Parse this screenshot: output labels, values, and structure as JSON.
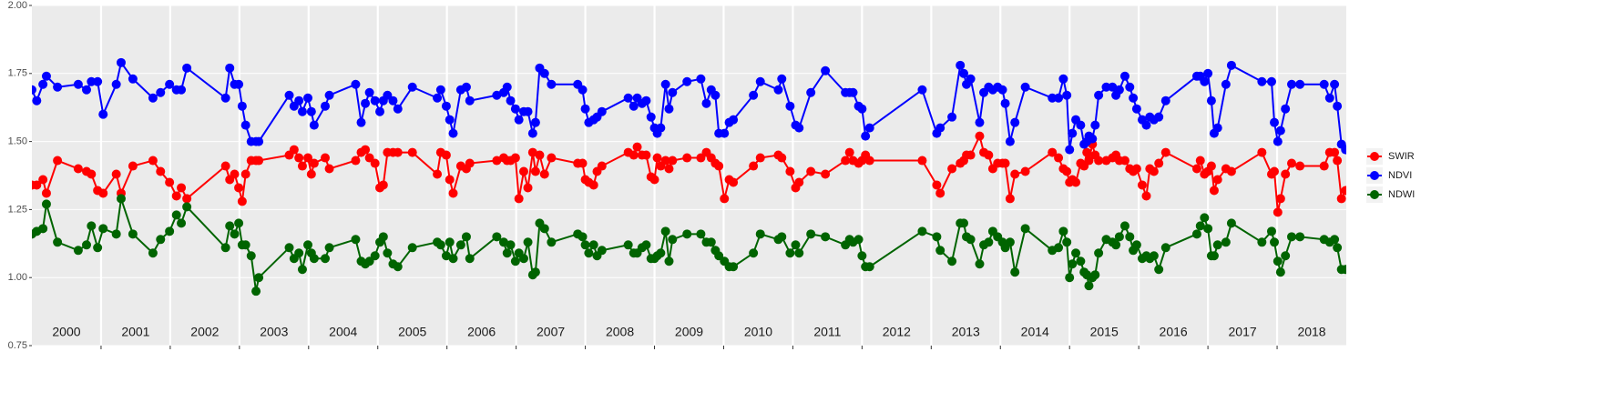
{
  "chart_data": {
    "type": "line",
    "x": [
      2000.0,
      2000.07,
      2000.16,
      2000.21,
      2000.37,
      2000.67,
      2000.79,
      2000.86,
      2000.95,
      2001.03,
      2001.22,
      2001.29,
      2001.46,
      2001.75,
      2001.86,
      2001.99,
      2002.09,
      2002.16,
      2002.24,
      2002.8,
      2002.86,
      2002.93,
      2002.99,
      2003.04,
      2003.09,
      2003.17,
      2003.24,
      2003.28,
      2003.72,
      2003.79,
      2003.86,
      2003.91,
      2003.99,
      2004.04,
      2004.08,
      2004.24,
      2004.3,
      2004.68,
      2004.76,
      2004.82,
      2004.88,
      2004.96,
      2005.03,
      2005.08,
      2005.14,
      2005.22,
      2005.29,
      2005.5,
      2005.86,
      2005.91,
      2005.99,
      2006.04,
      2006.09,
      2006.2,
      2006.28,
      2006.33,
      2006.72,
      2006.82,
      2006.87,
      2006.92,
      2006.99,
      2007.04,
      2007.11,
      2007.17,
      2007.24,
      2007.28,
      2007.34,
      2007.41,
      2007.51,
      2007.89,
      2007.96,
      2008.0,
      2008.05,
      2008.12,
      2008.17,
      2008.24,
      2008.62,
      2008.7,
      2008.75,
      2008.82,
      2008.88,
      2008.95,
      2009.0,
      2009.04,
      2009.09,
      2009.16,
      2009.21,
      2009.26,
      2009.47,
      2009.67,
      2009.75,
      2009.82,
      2009.88,
      2009.93,
      2010.01,
      2010.08,
      2010.14,
      2010.43,
      2010.53,
      2010.79,
      2010.84,
      2010.96,
      2011.04,
      2011.09,
      2011.26,
      2011.47,
      2011.76,
      2011.82,
      2011.87,
      2011.95,
      2012.0,
      2012.05,
      2012.11,
      2012.87,
      2013.08,
      2013.13,
      2013.3,
      2013.42,
      2013.47,
      2013.51,
      2013.57,
      2013.7,
      2013.76,
      2013.83,
      2013.89,
      2013.96,
      2014.03,
      2014.07,
      2014.14,
      2014.21,
      2014.36,
      2014.75,
      2014.84,
      2014.91,
      2014.96,
      2015.0,
      2015.04,
      2015.09,
      2015.16,
      2015.21,
      2015.25,
      2015.28,
      2015.33,
      2015.37,
      2015.42,
      2015.53,
      2015.62,
      2015.67,
      2015.72,
      2015.8,
      2015.87,
      2015.92,
      2015.97,
      2016.05,
      2016.11,
      2016.16,
      2016.22,
      2016.29,
      2016.39,
      2016.84,
      2016.89,
      2016.95,
      2017.0,
      2017.05,
      2017.09,
      2017.14,
      2017.26,
      2017.34,
      2017.78,
      2017.92,
      2017.96,
      2018.01,
      2018.05,
      2018.12,
      2018.21,
      2018.33,
      2018.68,
      2018.76,
      2018.83,
      2018.87,
      2018.93,
      2018.99
    ],
    "series": [
      {
        "name": "SWIR",
        "color": "#ff0000",
        "values": [
          1.34,
          1.34,
          1.36,
          1.31,
          1.43,
          1.4,
          1.39,
          1.38,
          1.32,
          1.31,
          1.38,
          1.31,
          1.41,
          1.43,
          1.39,
          1.35,
          1.3,
          1.33,
          1.29,
          1.41,
          1.36,
          1.38,
          1.33,
          1.28,
          1.38,
          1.43,
          1.43,
          1.43,
          1.45,
          1.47,
          1.44,
          1.41,
          1.44,
          1.38,
          1.42,
          1.44,
          1.4,
          1.43,
          1.46,
          1.47,
          1.44,
          1.42,
          1.33,
          1.34,
          1.46,
          1.46,
          1.46,
          1.46,
          1.38,
          1.46,
          1.45,
          1.36,
          1.31,
          1.41,
          1.4,
          1.42,
          1.43,
          1.44,
          1.43,
          1.43,
          1.44,
          1.29,
          1.39,
          1.33,
          1.46,
          1.39,
          1.45,
          1.38,
          1.44,
          1.42,
          1.42,
          1.36,
          1.35,
          1.34,
          1.39,
          1.41,
          1.46,
          1.45,
          1.48,
          1.45,
          1.45,
          1.37,
          1.36,
          1.44,
          1.41,
          1.43,
          1.4,
          1.43,
          1.44,
          1.44,
          1.46,
          1.44,
          1.42,
          1.41,
          1.29,
          1.36,
          1.35,
          1.41,
          1.44,
          1.45,
          1.44,
          1.39,
          1.33,
          1.35,
          1.39,
          1.38,
          1.43,
          1.46,
          1.43,
          1.42,
          1.43,
          1.45,
          1.43,
          1.43,
          1.34,
          1.31,
          1.4,
          1.42,
          1.43,
          1.45,
          1.45,
          1.52,
          1.46,
          1.45,
          1.4,
          1.42,
          1.42,
          1.42,
          1.29,
          1.38,
          1.39,
          1.46,
          1.44,
          1.4,
          1.39,
          1.35,
          1.36,
          1.35,
          1.42,
          1.41,
          1.46,
          1.43,
          1.49,
          1.45,
          1.43,
          1.43,
          1.44,
          1.45,
          1.43,
          1.43,
          1.4,
          1.39,
          1.4,
          1.34,
          1.3,
          1.4,
          1.39,
          1.42,
          1.46,
          1.4,
          1.43,
          1.38,
          1.39,
          1.41,
          1.32,
          1.36,
          1.4,
          1.39,
          1.46,
          1.38,
          1.39,
          1.24,
          1.29,
          1.38,
          1.42,
          1.41,
          1.41,
          1.46,
          1.46,
          1.43,
          1.29,
          1.32
        ]
      },
      {
        "name": "NDVI",
        "color": "#0000ff",
        "values": [
          1.69,
          1.65,
          1.71,
          1.74,
          1.7,
          1.71,
          1.69,
          1.72,
          1.72,
          1.6,
          1.71,
          1.79,
          1.73,
          1.66,
          1.68,
          1.71,
          1.69,
          1.69,
          1.77,
          1.66,
          1.77,
          1.71,
          1.71,
          1.63,
          1.56,
          1.5,
          1.5,
          1.5,
          1.67,
          1.63,
          1.65,
          1.61,
          1.66,
          1.61,
          1.56,
          1.63,
          1.67,
          1.71,
          1.57,
          1.64,
          1.68,
          1.65,
          1.61,
          1.65,
          1.67,
          1.65,
          1.62,
          1.7,
          1.66,
          1.69,
          1.63,
          1.58,
          1.53,
          1.69,
          1.7,
          1.65,
          1.67,
          1.68,
          1.7,
          1.65,
          1.62,
          1.58,
          1.61,
          1.61,
          1.53,
          1.57,
          1.77,
          1.75,
          1.71,
          1.71,
          1.69,
          1.62,
          1.57,
          1.58,
          1.59,
          1.61,
          1.66,
          1.63,
          1.66,
          1.64,
          1.65,
          1.59,
          1.55,
          1.53,
          1.55,
          1.71,
          1.62,
          1.68,
          1.72,
          1.73,
          1.64,
          1.69,
          1.67,
          1.53,
          1.53,
          1.57,
          1.58,
          1.67,
          1.72,
          1.69,
          1.73,
          1.63,
          1.56,
          1.55,
          1.68,
          1.76,
          1.68,
          1.68,
          1.68,
          1.63,
          1.62,
          1.52,
          1.55,
          1.69,
          1.53,
          1.55,
          1.59,
          1.78,
          1.75,
          1.71,
          1.73,
          1.57,
          1.68,
          1.7,
          1.69,
          1.7,
          1.69,
          1.64,
          1.5,
          1.57,
          1.7,
          1.66,
          1.66,
          1.73,
          1.67,
          1.47,
          1.53,
          1.58,
          1.56,
          1.49,
          1.5,
          1.52,
          1.51,
          1.56,
          1.67,
          1.7,
          1.7,
          1.67,
          1.69,
          1.74,
          1.7,
          1.66,
          1.62,
          1.58,
          1.56,
          1.59,
          1.58,
          1.59,
          1.65,
          1.74,
          1.74,
          1.72,
          1.75,
          1.65,
          1.53,
          1.55,
          1.71,
          1.78,
          1.72,
          1.72,
          1.57,
          1.5,
          1.54,
          1.62,
          1.71,
          1.71,
          1.71,
          1.66,
          1.71,
          1.63,
          1.49,
          1.47
        ]
      },
      {
        "name": "NDWI",
        "color": "#006400",
        "values": [
          1.16,
          1.17,
          1.18,
          1.27,
          1.13,
          1.1,
          1.12,
          1.19,
          1.11,
          1.18,
          1.16,
          1.29,
          1.16,
          1.09,
          1.14,
          1.17,
          1.23,
          1.2,
          1.26,
          1.11,
          1.19,
          1.16,
          1.2,
          1.12,
          1.12,
          1.08,
          0.95,
          1.0,
          1.11,
          1.07,
          1.09,
          1.03,
          1.12,
          1.09,
          1.07,
          1.07,
          1.11,
          1.14,
          1.06,
          1.05,
          1.06,
          1.08,
          1.13,
          1.15,
          1.09,
          1.05,
          1.04,
          1.11,
          1.13,
          1.12,
          1.08,
          1.13,
          1.07,
          1.12,
          1.15,
          1.07,
          1.15,
          1.13,
          1.09,
          1.12,
          1.06,
          1.09,
          1.07,
          1.13,
          1.01,
          1.02,
          1.2,
          1.18,
          1.13,
          1.16,
          1.15,
          1.12,
          1.09,
          1.12,
          1.08,
          1.1,
          1.12,
          1.09,
          1.09,
          1.11,
          1.12,
          1.07,
          1.07,
          1.08,
          1.09,
          1.17,
          1.06,
          1.14,
          1.16,
          1.16,
          1.13,
          1.13,
          1.1,
          1.08,
          1.06,
          1.04,
          1.04,
          1.09,
          1.16,
          1.14,
          1.15,
          1.09,
          1.12,
          1.09,
          1.16,
          1.15,
          1.12,
          1.14,
          1.13,
          1.14,
          1.08,
          1.04,
          1.04,
          1.17,
          1.15,
          1.1,
          1.06,
          1.2,
          1.2,
          1.15,
          1.14,
          1.05,
          1.12,
          1.13,
          1.17,
          1.15,
          1.13,
          1.11,
          1.13,
          1.02,
          1.18,
          1.1,
          1.11,
          1.17,
          1.13,
          1.0,
          1.05,
          1.09,
          1.06,
          1.02,
          1.01,
          0.97,
          1.0,
          1.01,
          1.09,
          1.14,
          1.13,
          1.12,
          1.15,
          1.19,
          1.15,
          1.1,
          1.12,
          1.07,
          1.08,
          1.07,
          1.08,
          1.03,
          1.11,
          1.16,
          1.19,
          1.22,
          1.18,
          1.08,
          1.08,
          1.12,
          1.13,
          1.2,
          1.13,
          1.17,
          1.13,
          1.06,
          1.02,
          1.08,
          1.15,
          1.15,
          1.14,
          1.13,
          1.14,
          1.11,
          1.03,
          1.03
        ]
      }
    ],
    "xlim": [
      2000,
      2019
    ],
    "xticks": [
      {
        "value": 2000.5,
        "label": "2000"
      },
      {
        "value": 2001.5,
        "label": "2001"
      },
      {
        "value": 2002.5,
        "label": "2002"
      },
      {
        "value": 2003.5,
        "label": "2003"
      },
      {
        "value": 2004.5,
        "label": "2004"
      },
      {
        "value": 2005.5,
        "label": "2005"
      },
      {
        "value": 2006.5,
        "label": "2006"
      },
      {
        "value": 2007.5,
        "label": "2007"
      },
      {
        "value": 2008.5,
        "label": "2008"
      },
      {
        "value": 2009.5,
        "label": "2009"
      },
      {
        "value": 2010.5,
        "label": "2010"
      },
      {
        "value": 2011.5,
        "label": "2011"
      },
      {
        "value": 2012.5,
        "label": "2012"
      },
      {
        "value": 2013.5,
        "label": "2013"
      },
      {
        "value": 2014.5,
        "label": "2014"
      },
      {
        "value": 2015.5,
        "label": "2015"
      },
      {
        "value": 2016.5,
        "label": "2016"
      },
      {
        "value": 2017.5,
        "label": "2017"
      },
      {
        "value": 2018.5,
        "label": "2018"
      }
    ],
    "year_boundaries": [
      2001,
      2002,
      2003,
      2004,
      2005,
      2006,
      2007,
      2008,
      2009,
      2010,
      2011,
      2012,
      2013,
      2014,
      2015,
      2016,
      2017,
      2018
    ],
    "ylim": [
      0.75,
      2.0
    ],
    "yticks": [
      0.75,
      {
        "value": 1.0,
        "label": "1.00"
      },
      1.25,
      {
        "value": 1.5,
        "label": "1.50"
      },
      1.75,
      {
        "value": 2.0,
        "label": "2.00"
      }
    ],
    "grid": true,
    "legend": "right"
  }
}
